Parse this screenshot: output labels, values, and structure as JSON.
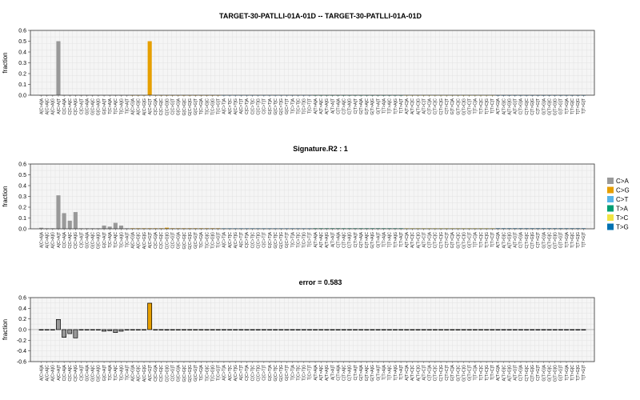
{
  "chart_data": [
    {
      "type": "bar",
      "title": "TARGET-30-PATLLI-01A-01D -- TARGET-30-PATLLI-01A-01D",
      "ylabel": "fraction",
      "ylim": [
        0,
        0.6
      ],
      "yticks": [
        "0.0",
        "0.1",
        "0.2",
        "0.3",
        "0.4",
        "0.5",
        "0.6"
      ],
      "grid": true,
      "values": [
        0,
        0,
        0,
        0.5,
        0,
        0,
        0,
        0,
        0,
        0,
        0,
        0,
        0,
        0,
        0,
        0,
        0,
        0,
        0,
        0.5,
        0,
        0,
        0,
        0,
        0,
        0,
        0,
        0,
        0,
        0,
        0,
        0,
        0,
        0,
        0,
        0,
        0,
        0,
        0,
        0,
        0,
        0,
        0,
        0,
        0,
        0,
        0,
        0,
        0,
        0,
        0,
        0,
        0,
        0,
        0,
        0,
        0,
        0,
        0,
        0,
        0,
        0,
        0,
        0,
        0,
        0,
        0,
        0,
        0,
        0,
        0,
        0,
        0,
        0,
        0,
        0,
        0,
        0,
        0,
        0,
        0,
        0,
        0,
        0,
        0,
        0,
        0,
        0,
        0,
        0,
        0,
        0,
        0,
        0,
        0,
        0
      ]
    },
    {
      "type": "bar",
      "title": "Signature.R2 : 1",
      "ylabel": "fraction",
      "ylim": [
        0,
        0.6
      ],
      "yticks": [
        "0.0",
        "0.1",
        "0.2",
        "0.3",
        "0.4",
        "0.5",
        "0.6"
      ],
      "grid": true,
      "legend_position": "right",
      "values": [
        0.01,
        0.005,
        0.005,
        0.31,
        0.145,
        0.075,
        0.155,
        0.005,
        0.005,
        0.005,
        0.005,
        0.03,
        0.02,
        0.055,
        0.03,
        0.005,
        0.005,
        0.005,
        0.005,
        0.005,
        0.005,
        0.005,
        0.01,
        0.005,
        0.005,
        0.005,
        0.005,
        0.005,
        0.005,
        0.005,
        0.005,
        0.005,
        0.005,
        0.005,
        0.005,
        0.005,
        0.005,
        0.005,
        0.005,
        0.005,
        0.005,
        0.005,
        0.005,
        0.005,
        0.005,
        0.005,
        0.005,
        0.005,
        0.005,
        0.005,
        0.005,
        0.005,
        0.005,
        0.005,
        0.005,
        0.005,
        0.005,
        0.005,
        0.005,
        0.005,
        0.005,
        0.005,
        0.005,
        0.005,
        0.005,
        0.005,
        0.005,
        0.005,
        0.005,
        0.005,
        0.005,
        0.005,
        0.005,
        0.005,
        0.005,
        0.005,
        0.005,
        0.005,
        0.005,
        0.005,
        0.005,
        0.005,
        0.005,
        0.005,
        0.005,
        0.005,
        0.005,
        0.005,
        0.005,
        0.005,
        0.005,
        0.005,
        0.005,
        0.005,
        0.005,
        0.005
      ]
    },
    {
      "type": "bar",
      "title": "error = 0.583",
      "ylabel": "fraction",
      "ylim": [
        -0.6,
        0.6
      ],
      "yticks": [
        "-0.6",
        "-0.4",
        "-0.2",
        "0.0",
        "0.2",
        "0.4",
        "0.6"
      ],
      "grid": true,
      "outlined": true,
      "values": [
        -0.01,
        -0.005,
        -0.005,
        0.19,
        -0.145,
        -0.075,
        -0.155,
        -0.005,
        -0.005,
        -0.005,
        -0.005,
        -0.03,
        -0.02,
        -0.055,
        -0.03,
        -0.005,
        -0.005,
        -0.005,
        -0.005,
        0.495,
        -0.005,
        -0.005,
        -0.01,
        -0.005,
        -0.005,
        -0.005,
        -0.005,
        -0.005,
        -0.005,
        -0.005,
        -0.005,
        -0.005,
        -0.005,
        -0.005,
        -0.005,
        -0.005,
        -0.005,
        -0.005,
        -0.005,
        -0.005,
        -0.005,
        -0.005,
        -0.005,
        -0.005,
        -0.005,
        -0.005,
        -0.005,
        -0.005,
        -0.005,
        -0.005,
        -0.005,
        -0.005,
        -0.005,
        -0.005,
        -0.005,
        -0.005,
        -0.005,
        -0.005,
        -0.005,
        -0.005,
        -0.005,
        -0.005,
        -0.005,
        -0.005,
        -0.005,
        -0.005,
        -0.005,
        -0.005,
        -0.005,
        -0.005,
        -0.005,
        -0.005,
        -0.005,
        -0.005,
        -0.005,
        -0.005,
        -0.005,
        -0.005,
        -0.005,
        -0.005,
        -0.005,
        -0.005,
        -0.005,
        -0.005,
        -0.005,
        -0.005,
        -0.005,
        -0.005,
        -0.005,
        -0.005,
        -0.005,
        -0.005,
        -0.005,
        -0.005,
        -0.005,
        -0.005
      ]
    }
  ],
  "categories": [
    "A[C>A]A",
    "A[C>A]C",
    "A[C>A]G",
    "A[C>A]T",
    "C[C>A]A",
    "C[C>A]C",
    "C[C>A]G",
    "C[C>A]T",
    "G[C>A]A",
    "G[C>A]C",
    "G[C>A]G",
    "G[C>A]T",
    "T[C>A]A",
    "T[C>A]C",
    "T[C>A]G",
    "T[C>A]T",
    "A[C>G]A",
    "A[C>G]C",
    "A[C>G]G",
    "A[C>G]T",
    "C[C>G]A",
    "C[C>G]C",
    "C[C>G]G",
    "C[C>G]T",
    "G[C>G]A",
    "G[C>G]C",
    "G[C>G]G",
    "G[C>G]T",
    "T[C>G]A",
    "T[C>G]C",
    "T[C>G]G",
    "T[C>G]T",
    "A[C>T]A",
    "A[C>T]C",
    "A[C>T]G",
    "A[C>T]T",
    "C[C>T]A",
    "C[C>T]C",
    "C[C>T]G",
    "C[C>T]T",
    "G[C>T]A",
    "G[C>T]C",
    "G[C>T]G",
    "G[C>T]T",
    "T[C>T]A",
    "T[C>T]C",
    "T[C>T]G",
    "T[C>T]T",
    "A[T>A]A",
    "A[T>A]C",
    "A[T>A]G",
    "A[T>A]T",
    "C[T>A]A",
    "C[T>A]C",
    "C[T>A]G",
    "C[T>A]T",
    "G[T>A]A",
    "G[T>A]C",
    "G[T>A]G",
    "G[T>A]T",
    "T[T>A]A",
    "T[T>A]C",
    "T[T>A]G",
    "T[T>A]T",
    "A[T>C]A",
    "A[T>C]C",
    "A[T>C]G",
    "A[T>C]T",
    "C[T>C]A",
    "C[T>C]C",
    "C[T>C]G",
    "C[T>C]T",
    "G[T>C]A",
    "G[T>C]C",
    "G[T>C]G",
    "G[T>C]T",
    "T[T>C]A",
    "T[T>C]C",
    "T[T>C]G",
    "T[T>C]T",
    "A[T>G]A",
    "A[T>G]C",
    "A[T>G]G",
    "A[T>G]T",
    "C[T>G]A",
    "C[T>G]C",
    "C[T>G]G",
    "C[T>G]T",
    "G[T>G]A",
    "G[T>G]C",
    "G[T>G]G",
    "G[T>G]T",
    "T[T>G]A",
    "T[T>G]C",
    "T[T>G]G",
    "T[T>G]T"
  ],
  "legend": {
    "items": [
      {
        "label": "C>A",
        "color": "#999999"
      },
      {
        "label": "C>G",
        "color": "#E69F00"
      },
      {
        "label": "C>T",
        "color": "#56B4E9"
      },
      {
        "label": "T>A",
        "color": "#009E73"
      },
      {
        "label": "T>C",
        "color": "#F0E442"
      },
      {
        "label": "T>G",
        "color": "#0072B2"
      }
    ]
  }
}
